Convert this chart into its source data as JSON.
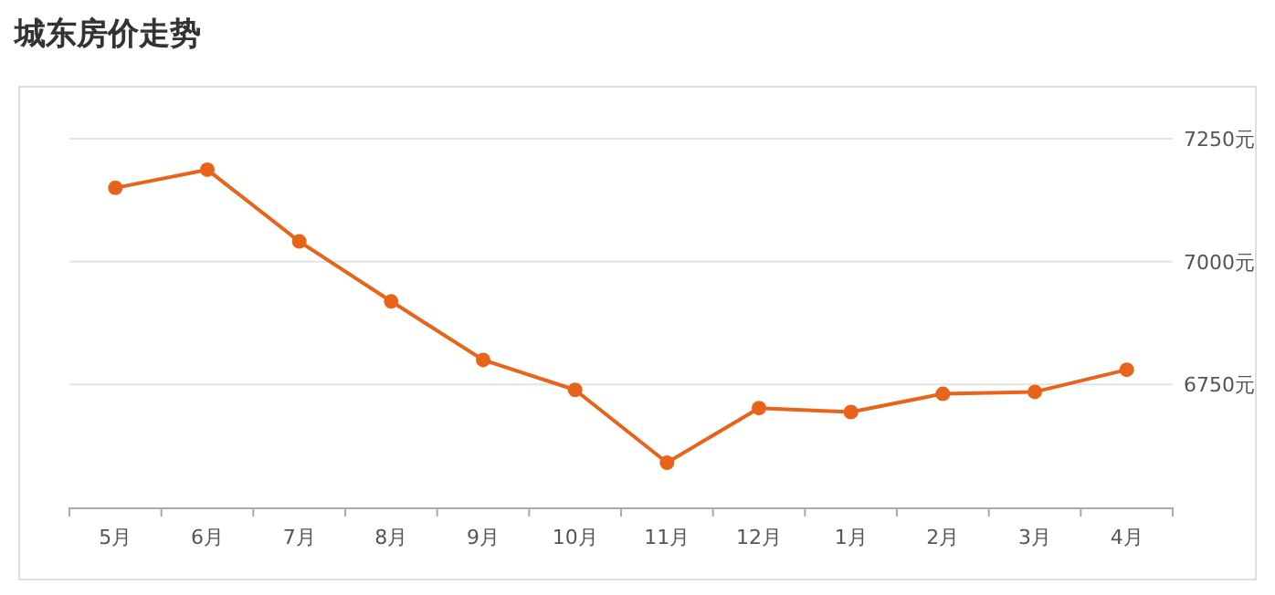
{
  "chart_data": {
    "type": "line",
    "title": "城东房价走势",
    "categories": [
      "5月",
      "6月",
      "7月",
      "8月",
      "9月",
      "10月",
      "11月",
      "12月",
      "1月",
      "2月",
      "3月",
      "4月"
    ],
    "series": [
      {
        "color": "#e8641b",
        "values": [
          7150,
          7187,
          7041,
          6919,
          6800,
          6739,
          6591,
          6702,
          6694,
          6731,
          6735,
          6780
        ]
      }
    ],
    "ylim": [
      6500,
      7250
    ],
    "yticks": [
      {
        "value": 6750,
        "label": "6750元"
      },
      {
        "value": 7000,
        "label": "7000元"
      },
      {
        "value": 7250,
        "label": "7250元"
      }
    ],
    "grid": "y",
    "marker": "circle",
    "line_style": "solid"
  }
}
